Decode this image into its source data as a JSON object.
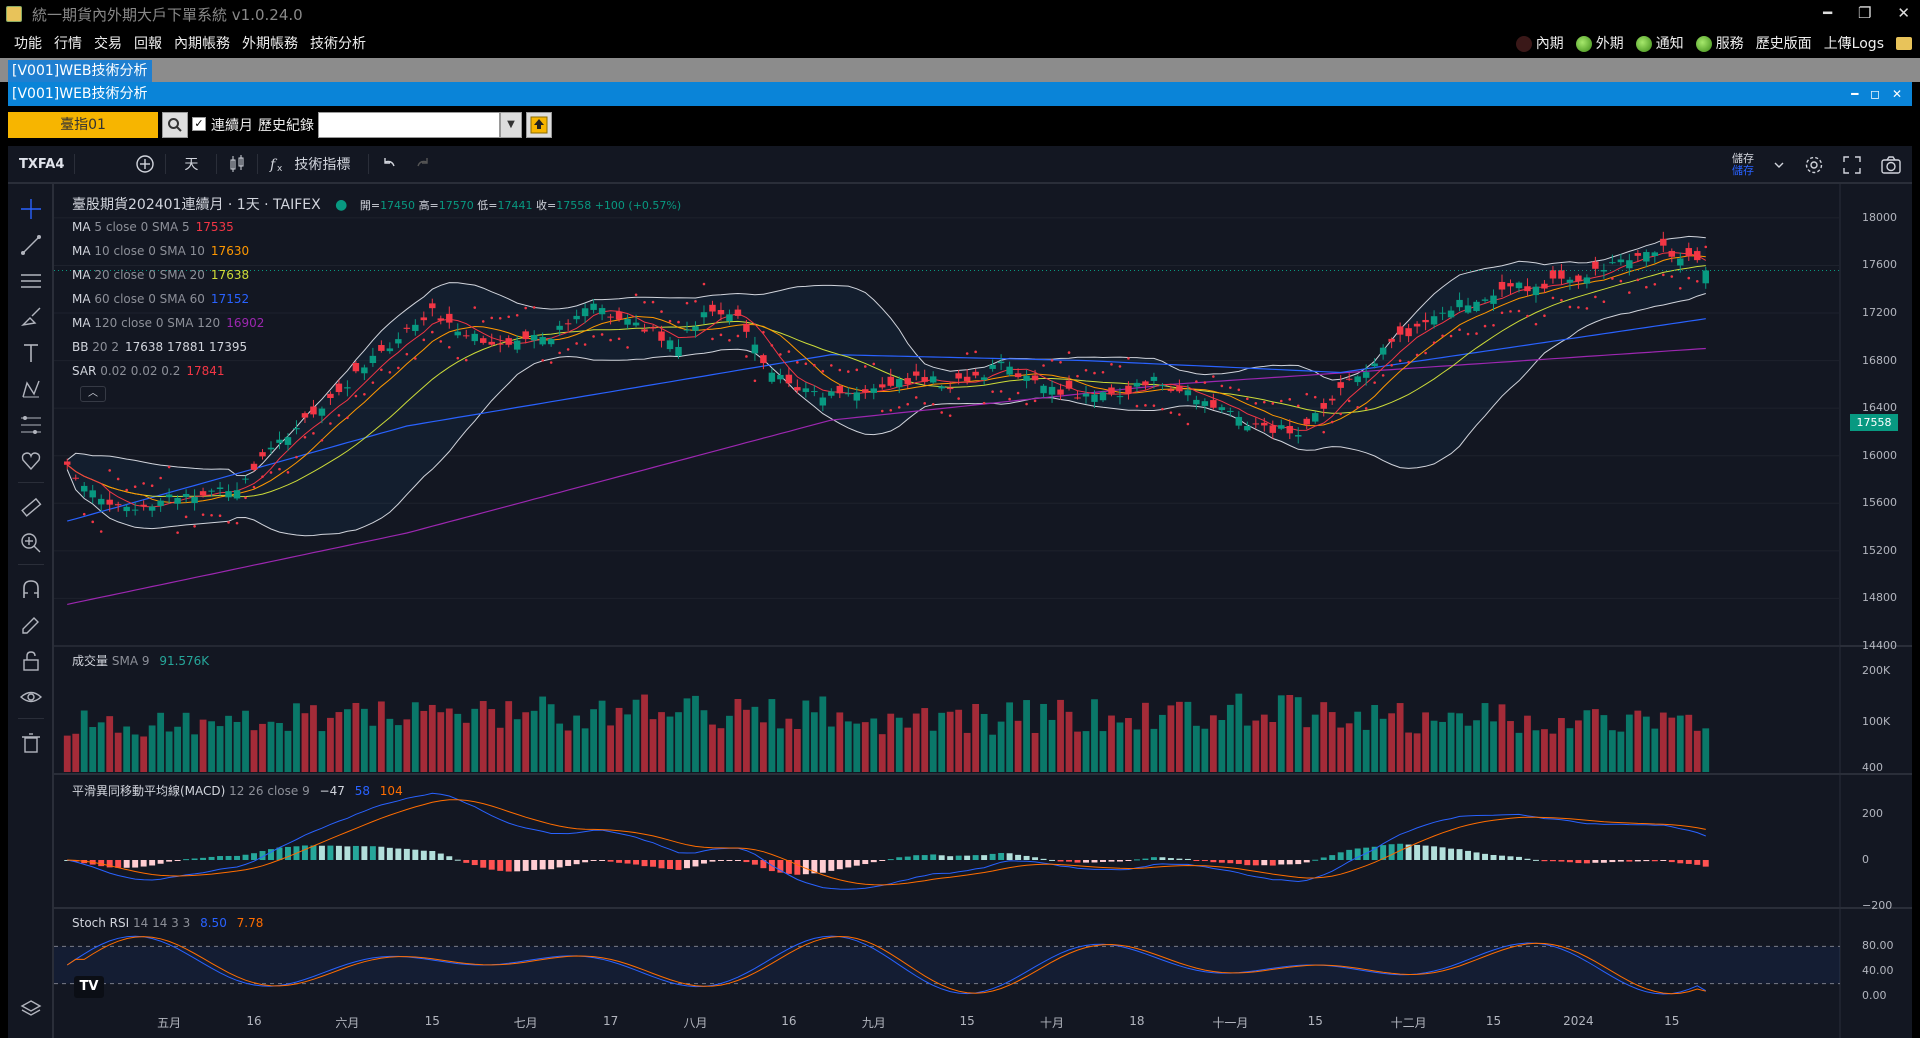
{
  "window": {
    "title": "統一期貨內外期大戶下單系統 v1.0.24.0",
    "minimize": "━",
    "restore": "❐",
    "close": "✕"
  },
  "menubar": {
    "items": [
      "功能",
      "行情",
      "交易",
      "回報",
      "內期帳務",
      "外期帳務",
      "技術分析"
    ],
    "status": {
      "domestic": "內期",
      "foreign": "外期",
      "notify": "通知",
      "service": "服務",
      "history": "歷史版面",
      "upload_logs": "上傳Logs"
    }
  },
  "tab": {
    "label": "[V001]WEB技術分析"
  },
  "subwindow": {
    "title": "[V001]WEB技術分析",
    "buttons": "━ ◻ ✕"
  },
  "toolbar": {
    "symbol": "臺指01",
    "continuous_checked": "✓",
    "continuous_label": "連續月",
    "history_label": "歷史紀錄",
    "history_value": ""
  },
  "tv_toolbar": {
    "symbol": "TXFA4",
    "interval": "天",
    "indicators": "技術指標",
    "save_top": "儲存",
    "save_bottom": "儲存"
  },
  "colors": {
    "up": "#089981",
    "down": "#f23645",
    "background": "#131722",
    "grid": "#1e222d",
    "ma5": "#f23645",
    "ma10": "#ff9800",
    "ma20": "#cddc39",
    "ma60": "#2962ff",
    "ma120": "#9c27b0",
    "bb": "#d1d4dc",
    "sar": "#f23645",
    "macd_line": "#2962ff",
    "signal_line": "#ff6d00",
    "stoch_k": "#2962ff",
    "stoch_d": "#ff6d00"
  },
  "legend": {
    "main_title": "臺股期貨202401連續月 · 1天 · TAIFEX",
    "ohlc": {
      "o_label": "開=",
      "o": "17450",
      "h_label": "高=",
      "h": "17570",
      "l_label": "低=",
      "l": "17441",
      "c_label": "收=",
      "c": "17558",
      "chg": "+100 (+0.57%)"
    },
    "indicators": [
      {
        "name": "MA",
        "params": "5 close 0 SMA 5",
        "value": "17535",
        "color": "#f23645"
      },
      {
        "name": "MA",
        "params": "10 close 0 SMA 10",
        "value": "17630",
        "color": "#ff9800"
      },
      {
        "name": "MA",
        "params": "20 close 0 SMA 20",
        "value": "17638",
        "color": "#cddc39"
      },
      {
        "name": "MA",
        "params": "60 close 0 SMA 60",
        "value": "17152",
        "color": "#2962ff"
      },
      {
        "name": "MA",
        "params": "120 close 0 SMA 120",
        "value": "16902",
        "color": "#9c27b0"
      },
      {
        "name": "BB",
        "params": "20 2",
        "value": "17638  17881  17395",
        "color": "#d1d4dc"
      },
      {
        "name": "SAR",
        "params": "0.02 0.02 0.2",
        "value": "17841",
        "color": "#f23645"
      }
    ],
    "volume": {
      "name": "成交量",
      "params": "SMA 9",
      "value": "91.576K"
    },
    "macd": {
      "name": "平滑異同移動平均線(MACD)",
      "params": "12 26 close 9",
      "hist": "−47",
      "macd": "58",
      "signal": "104"
    },
    "stoch": {
      "name": "Stoch RSI",
      "params": "14 14 3 3",
      "k": "8.50",
      "d": "7.78"
    }
  },
  "last_price": "17558",
  "tv_logo": "TV",
  "chart_data": {
    "type": "candlestick",
    "symbol": "臺股期貨202401連續月",
    "interval": "1天",
    "price_axis": [
      "18000",
      "17600",
      "17200",
      "16800",
      "16400",
      "16000",
      "15600",
      "15200",
      "14800",
      "14400"
    ],
    "volume_axis": [
      "200K",
      "100K"
    ],
    "macd_axis": [
      "400",
      "200",
      "0",
      "−200"
    ],
    "stoch_axis": [
      "80.00",
      "40.00",
      "0.00"
    ],
    "x_labels": [
      "五月",
      "16",
      "六月",
      "15",
      "七月",
      "17",
      "八月",
      "16",
      "九月",
      "15",
      "十月",
      "18",
      "十一月",
      "15",
      "十二月",
      "15",
      "2024",
      "15"
    ],
    "ylim": [
      14400,
      18100
    ],
    "close_anchors": [
      [
        0,
        15900
      ],
      [
        6,
        15550
      ],
      [
        12,
        15650
      ],
      [
        17,
        15700
      ],
      [
        20,
        15750
      ],
      [
        28,
        16300
      ],
      [
        36,
        16800
      ],
      [
        43,
        17200
      ],
      [
        47,
        17050
      ],
      [
        52,
        16900
      ],
      [
        58,
        17050
      ],
      [
        62,
        17250
      ],
      [
        67,
        17100
      ],
      [
        72,
        16950
      ],
      [
        75,
        17200
      ],
      [
        79,
        17150
      ],
      [
        83,
        16700
      ],
      [
        88,
        16500
      ],
      [
        94,
        16550
      ],
      [
        100,
        16650
      ],
      [
        104,
        16600
      ],
      [
        110,
        16750
      ],
      [
        117,
        16550
      ],
      [
        123,
        16500
      ],
      [
        128,
        16650
      ],
      [
        134,
        16450
      ],
      [
        140,
        16250
      ],
      [
        145,
        16200
      ],
      [
        151,
        16600
      ],
      [
        157,
        17000
      ],
      [
        163,
        17250
      ],
      [
        169,
        17400
      ],
      [
        175,
        17450
      ],
      [
        181,
        17550
      ],
      [
        187,
        17750
      ],
      [
        191,
        17650
      ],
      [
        193,
        17560
      ]
    ],
    "volume_anchors_k": [
      [
        0,
        95
      ],
      [
        20,
        105
      ],
      [
        40,
        110
      ],
      [
        60,
        115
      ],
      [
        80,
        120
      ],
      [
        100,
        100
      ],
      [
        120,
        110
      ],
      [
        140,
        120
      ],
      [
        160,
        105
      ],
      [
        180,
        95
      ],
      [
        193,
        92
      ]
    ],
    "ma60_anchors": [
      [
        0,
        15450
      ],
      [
        40,
        16250
      ],
      [
        90,
        16850
      ],
      [
        120,
        16800
      ],
      [
        150,
        16700
      ],
      [
        193,
        17152
      ]
    ],
    "ma120_anchors": [
      [
        0,
        14750
      ],
      [
        40,
        15350
      ],
      [
        90,
        16300
      ],
      [
        130,
        16600
      ],
      [
        193,
        16902
      ]
    ]
  }
}
